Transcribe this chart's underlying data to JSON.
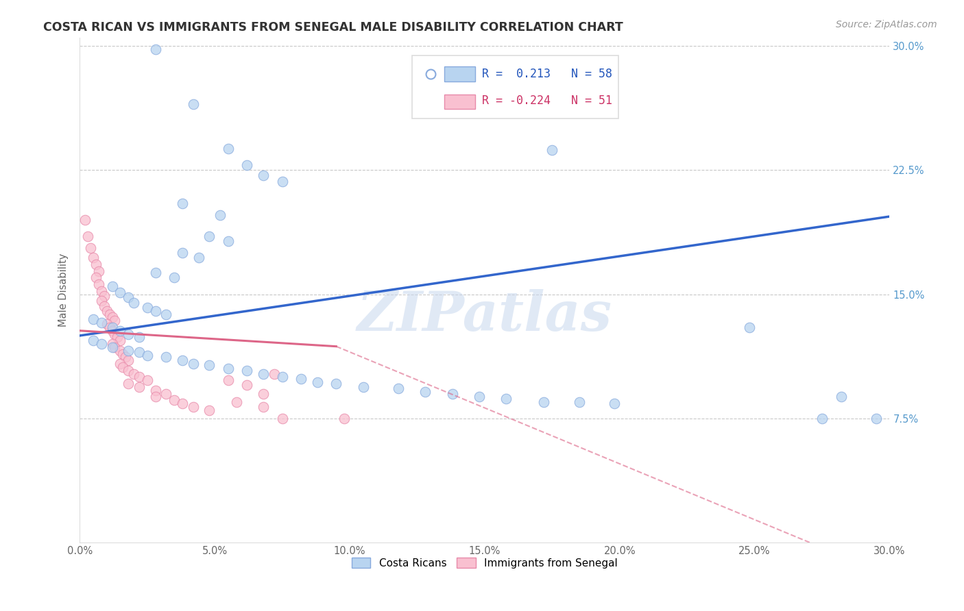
{
  "title": "COSTA RICAN VS IMMIGRANTS FROM SENEGAL MALE DISABILITY CORRELATION CHART",
  "source": "Source: ZipAtlas.com",
  "ylabel": "Male Disability",
  "xmin": 0.0,
  "xmax": 0.3,
  "ymin": 0.0,
  "ymax": 0.305,
  "r_blue": 0.213,
  "n_blue": 58,
  "r_pink": -0.224,
  "n_pink": 51,
  "watermark": "ZIPatlas",
  "blue_line": [
    0.125,
    0.197
  ],
  "pink_line_solid": [
    0.128,
    0.098
  ],
  "pink_line_dashed_start_x": 0.095,
  "pink_line_dashed": [
    0.103,
    -0.02
  ],
  "blue_scatter": [
    [
      0.028,
      0.298
    ],
    [
      0.042,
      0.265
    ],
    [
      0.055,
      0.238
    ],
    [
      0.062,
      0.228
    ],
    [
      0.068,
      0.222
    ],
    [
      0.075,
      0.218
    ],
    [
      0.038,
      0.205
    ],
    [
      0.052,
      0.198
    ],
    [
      0.048,
      0.185
    ],
    [
      0.055,
      0.182
    ],
    [
      0.038,
      0.175
    ],
    [
      0.044,
      0.172
    ],
    [
      0.028,
      0.163
    ],
    [
      0.035,
      0.16
    ],
    [
      0.012,
      0.155
    ],
    [
      0.015,
      0.151
    ],
    [
      0.018,
      0.148
    ],
    [
      0.02,
      0.145
    ],
    [
      0.025,
      0.142
    ],
    [
      0.028,
      0.14
    ],
    [
      0.032,
      0.138
    ],
    [
      0.005,
      0.135
    ],
    [
      0.008,
      0.133
    ],
    [
      0.012,
      0.13
    ],
    [
      0.015,
      0.128
    ],
    [
      0.018,
      0.126
    ],
    [
      0.022,
      0.124
    ],
    [
      0.005,
      0.122
    ],
    [
      0.008,
      0.12
    ],
    [
      0.012,
      0.118
    ],
    [
      0.018,
      0.116
    ],
    [
      0.022,
      0.115
    ],
    [
      0.025,
      0.113
    ],
    [
      0.032,
      0.112
    ],
    [
      0.038,
      0.11
    ],
    [
      0.042,
      0.108
    ],
    [
      0.048,
      0.107
    ],
    [
      0.055,
      0.105
    ],
    [
      0.062,
      0.104
    ],
    [
      0.068,
      0.102
    ],
    [
      0.075,
      0.1
    ],
    [
      0.082,
      0.099
    ],
    [
      0.088,
      0.097
    ],
    [
      0.095,
      0.096
    ],
    [
      0.105,
      0.094
    ],
    [
      0.118,
      0.093
    ],
    [
      0.128,
      0.091
    ],
    [
      0.138,
      0.09
    ],
    [
      0.148,
      0.088
    ],
    [
      0.158,
      0.087
    ],
    [
      0.172,
      0.085
    ],
    [
      0.185,
      0.085
    ],
    [
      0.198,
      0.084
    ],
    [
      0.175,
      0.237
    ],
    [
      0.248,
      0.13
    ],
    [
      0.275,
      0.075
    ],
    [
      0.295,
      0.075
    ],
    [
      0.282,
      0.088
    ]
  ],
  "pink_scatter": [
    [
      0.002,
      0.195
    ],
    [
      0.003,
      0.185
    ],
    [
      0.004,
      0.178
    ],
    [
      0.005,
      0.172
    ],
    [
      0.006,
      0.168
    ],
    [
      0.007,
      0.164
    ],
    [
      0.006,
      0.16
    ],
    [
      0.007,
      0.156
    ],
    [
      0.008,
      0.152
    ],
    [
      0.009,
      0.149
    ],
    [
      0.008,
      0.146
    ],
    [
      0.009,
      0.143
    ],
    [
      0.01,
      0.14
    ],
    [
      0.011,
      0.138
    ],
    [
      0.012,
      0.136
    ],
    [
      0.013,
      0.134
    ],
    [
      0.01,
      0.132
    ],
    [
      0.011,
      0.13
    ],
    [
      0.012,
      0.128
    ],
    [
      0.013,
      0.126
    ],
    [
      0.014,
      0.124
    ],
    [
      0.015,
      0.122
    ],
    [
      0.012,
      0.12
    ],
    [
      0.013,
      0.118
    ],
    [
      0.015,
      0.116
    ],
    [
      0.016,
      0.114
    ],
    [
      0.017,
      0.112
    ],
    [
      0.018,
      0.11
    ],
    [
      0.015,
      0.108
    ],
    [
      0.016,
      0.106
    ],
    [
      0.018,
      0.104
    ],
    [
      0.02,
      0.102
    ],
    [
      0.022,
      0.1
    ],
    [
      0.025,
      0.098
    ],
    [
      0.018,
      0.096
    ],
    [
      0.022,
      0.094
    ],
    [
      0.028,
      0.092
    ],
    [
      0.032,
      0.09
    ],
    [
      0.028,
      0.088
    ],
    [
      0.035,
      0.086
    ],
    [
      0.038,
      0.084
    ],
    [
      0.042,
      0.082
    ],
    [
      0.048,
      0.08
    ],
    [
      0.055,
      0.098
    ],
    [
      0.062,
      0.095
    ],
    [
      0.068,
      0.09
    ],
    [
      0.058,
      0.085
    ],
    [
      0.068,
      0.082
    ],
    [
      0.072,
      0.102
    ],
    [
      0.075,
      0.075
    ],
    [
      0.098,
      0.075
    ]
  ]
}
